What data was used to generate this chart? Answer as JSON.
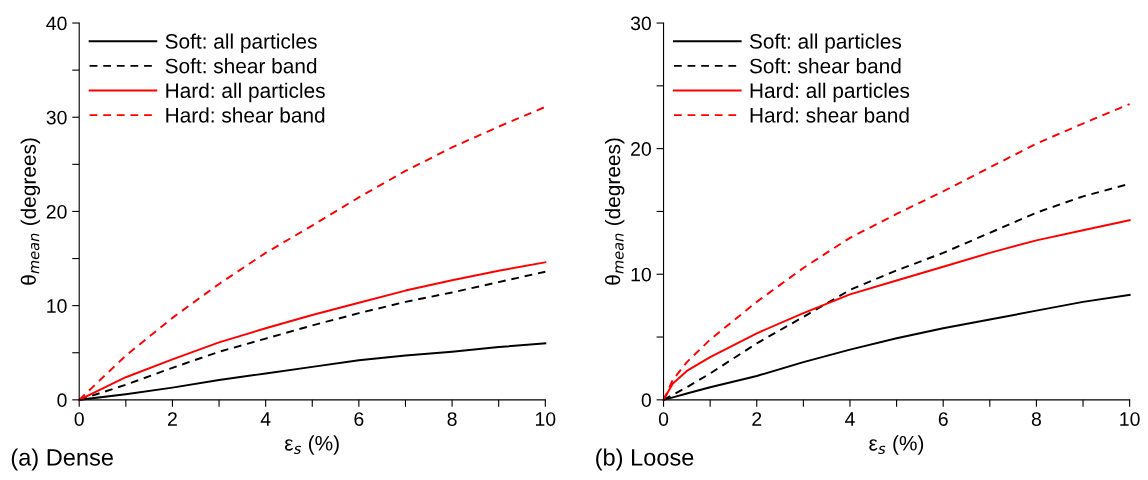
{
  "chart_data": [
    {
      "type": "line",
      "xlabel": "ε$_{s}$ (%)",
      "ylabel": "θ$_{mean}$ (degrees)",
      "annotations": [
        "(a) Dense"
      ],
      "legend": "top left",
      "grid": false,
      "xlim": [
        0,
        10
      ],
      "xticks": [
        0,
        {
          "value": 1,
          "label": null
        },
        2,
        {
          "value": 3,
          "label": null
        },
        4,
        {
          "value": 5,
          "label": null
        },
        6,
        {
          "value": 7,
          "label": null
        },
        8,
        {
          "value": 9,
          "label": null
        },
        10
      ],
      "ylim": [
        0,
        40
      ],
      "yticks": [
        0,
        {
          "value": 5,
          "label": null
        },
        10,
        {
          "value": 15,
          "label": null
        },
        20,
        {
          "value": 25,
          "label": null
        },
        30,
        {
          "value": 35,
          "label": null
        },
        40
      ],
      "x": [
        0,
        1,
        2,
        3,
        4,
        5,
        6,
        7,
        8,
        9,
        10
      ],
      "series": [
        {
          "name": "Soft: all particles",
          "color": "#000000",
          "line_style": "solid",
          "values": [
            0,
            0.6,
            1.3,
            2.1,
            2.8,
            3.5,
            4.2,
            4.7,
            5.1,
            5.6,
            6.0
          ]
        },
        {
          "name": "Soft: shear band",
          "color": "#000000",
          "line_style": "dashed",
          "values": [
            0,
            1.6,
            3.4,
            5.1,
            6.5,
            7.9,
            9.2,
            10.4,
            11.4,
            12.5,
            13.6
          ]
        },
        {
          "name": "Hard: all particles",
          "color": "#ff0000",
          "line_style": "solid",
          "values": [
            0,
            2.4,
            4.3,
            6.1,
            7.6,
            9.0,
            10.3,
            11.6,
            12.7,
            13.7,
            14.6
          ]
        },
        {
          "name": "Hard: shear band",
          "color": "#ff0000",
          "line_style": "dashed",
          "values": [
            0,
            4.7,
            8.7,
            12.3,
            15.6,
            18.5,
            21.5,
            24.3,
            26.8,
            29.0,
            31.1
          ]
        }
      ]
    },
    {
      "type": "line",
      "xlabel": "ε$_{s}$ (%)",
      "ylabel": "θ$_{mean}$ (degrees)",
      "annotations": [
        "(b) Loose"
      ],
      "legend": "top left",
      "grid": false,
      "xlim": [
        0,
        10
      ],
      "xticks": [
        0,
        {
          "value": 1,
          "label": null
        },
        2,
        {
          "value": 3,
          "label": null
        },
        4,
        {
          "value": 5,
          "label": null
        },
        6,
        {
          "value": 7,
          "label": null
        },
        8,
        {
          "value": 9,
          "label": null
        },
        10
      ],
      "ylim": [
        0,
        30
      ],
      "yticks": [
        0,
        {
          "value": 5,
          "label": null
        },
        10,
        {
          "value": 15,
          "label": null
        },
        20,
        {
          "value": 25,
          "label": null
        },
        30
      ],
      "x": [
        0,
        0.2,
        0.5,
        1,
        2,
        3,
        4,
        5,
        6,
        7,
        8,
        9,
        10
      ],
      "series": [
        {
          "name": "Soft: all particles",
          "color": "#000000",
          "line_style": "solid",
          "values": [
            0,
            0.2,
            0.5,
            1.0,
            1.9,
            3.0,
            4.0,
            4.9,
            5.7,
            6.4,
            7.1,
            7.8,
            8.35
          ]
        },
        {
          "name": "Soft: shear band",
          "color": "#000000",
          "line_style": "dashed",
          "values": [
            0,
            0.4,
            1.0,
            2.1,
            4.5,
            6.6,
            8.75,
            10.3,
            11.7,
            13.3,
            14.9,
            16.2,
            17.2
          ]
        },
        {
          "name": "Hard: all particles",
          "color": "#ff0000",
          "line_style": "solid",
          "values": [
            0,
            1.3,
            2.3,
            3.4,
            5.3,
            6.9,
            8.4,
            9.5,
            10.6,
            11.7,
            12.7,
            13.5,
            14.3
          ]
        },
        {
          "name": "Hard: shear band",
          "color": "#ff0000",
          "line_style": "dashed",
          "values": [
            0,
            1.6,
            3.0,
            4.8,
            7.8,
            10.5,
            12.9,
            14.8,
            16.6,
            18.5,
            20.4,
            22.0,
            23.55
          ]
        }
      ]
    }
  ]
}
